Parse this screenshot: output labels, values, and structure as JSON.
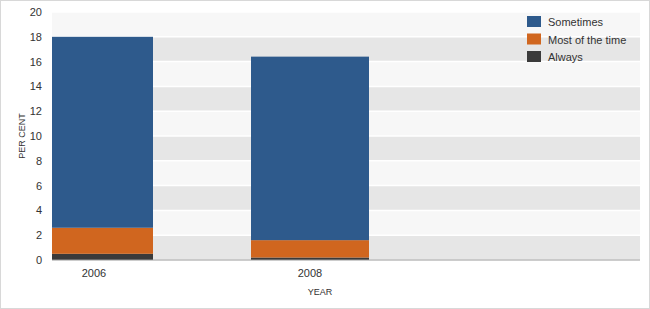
{
  "chart_data": {
    "type": "bar",
    "stacked": true,
    "x_label": "YEAR",
    "y_label": "PER CENT",
    "categories": [
      "2006",
      "2008"
    ],
    "series": [
      {
        "name": "Always",
        "color": "#3a3a3a",
        "values": [
          0.5,
          0.2
        ]
      },
      {
        "name": "Most of the time",
        "color": "#d0661f",
        "values": [
          2.1,
          1.4
        ]
      },
      {
        "name": "Sometimes",
        "color": "#2e5a8c",
        "values": [
          15.4,
          14.8
        ]
      }
    ],
    "ylim": [
      0,
      20
    ],
    "yticks": [
      0,
      2,
      4,
      6,
      8,
      10,
      12,
      14,
      16,
      18,
      20
    ],
    "grid": true,
    "legend": "top-right"
  }
}
